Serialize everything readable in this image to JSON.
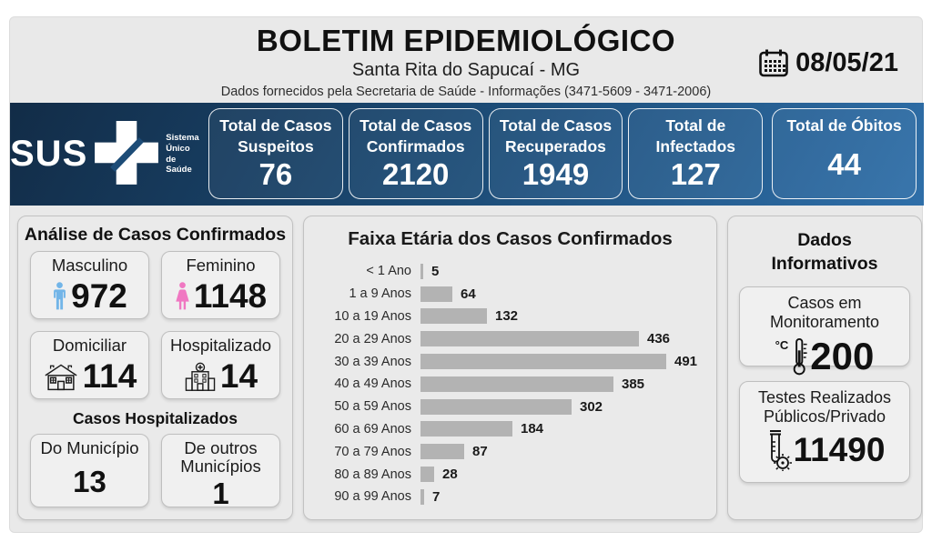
{
  "header": {
    "title": "BOLETIM EPIDEMIOLÓGICO",
    "subtitle": "Santa Rita do Sapucaí - MG",
    "info_line": "Dados fornecidos pela Secretaria de Saúde - Informações (3471-5609 - 3471-2006)",
    "date": "08/05/21"
  },
  "sus_band": {
    "bg_gradient": [
      "#122c47",
      "#2f6fa9"
    ],
    "logo": {
      "text": "SUS",
      "tagline": [
        "Sistema",
        "Único",
        "de Saúde"
      ]
    },
    "cards": [
      {
        "label": "Total de Casos Suspeitos",
        "value": "76"
      },
      {
        "label": "Total de Casos Confirmados",
        "value": "2120"
      },
      {
        "label": "Total de Casos Recuperados",
        "value": "1949"
      },
      {
        "label": "Total de Infectados",
        "value": "127"
      },
      {
        "label": "Total de Óbitos",
        "value": "44"
      }
    ]
  },
  "analysis_panel": {
    "title": "Análise de Casos Confirmados",
    "cards": [
      {
        "label": "Masculino",
        "value": "972",
        "icon": "male-icon",
        "icon_color": "#72b5e8"
      },
      {
        "label": "Feminino",
        "value": "1148",
        "icon": "female-icon",
        "icon_color": "#f078c2"
      },
      {
        "label": "Domiciliar",
        "value": "114",
        "icon": "house-icon"
      },
      {
        "label": "Hospitalizado",
        "value": "14",
        "icon": "hospital-icon"
      }
    ],
    "hospitalized": {
      "title": "Casos Hospitalizados",
      "cards": [
        {
          "label": "Do Município",
          "value": "13"
        },
        {
          "label": "De outros Municípios",
          "value": "1"
        }
      ]
    }
  },
  "chart_data": {
    "type": "bar",
    "orientation": "horizontal",
    "title": "Faixa Etária dos Casos Confirmados",
    "categories": [
      "< 1 Ano",
      "1 a 9 Anos",
      "10 a 19 Anos",
      "20 a 29 Anos",
      "30 a 39 Anos",
      "40 a 49 Anos",
      "50 a 59 Anos",
      "60 a 69 Anos",
      "70 a 79 Anos",
      "80 a 89 Anos",
      "90 a 99 Anos"
    ],
    "values": [
      5,
      64,
      132,
      436,
      491,
      385,
      302,
      184,
      87,
      28,
      7
    ],
    "bar_color": "#b3b3b3",
    "xlim": [
      0,
      491
    ],
    "grid": false,
    "legend": false
  },
  "info_panel": {
    "title": "Dados Informativos",
    "cards": [
      {
        "label": "Casos em Monitoramento",
        "value": "200",
        "icon": "thermometer-icon",
        "icon_prefix": "°C"
      },
      {
        "label": "Testes Realizados Públicos/Privado",
        "value": "11490",
        "icon": "test-tube-icon"
      }
    ]
  }
}
